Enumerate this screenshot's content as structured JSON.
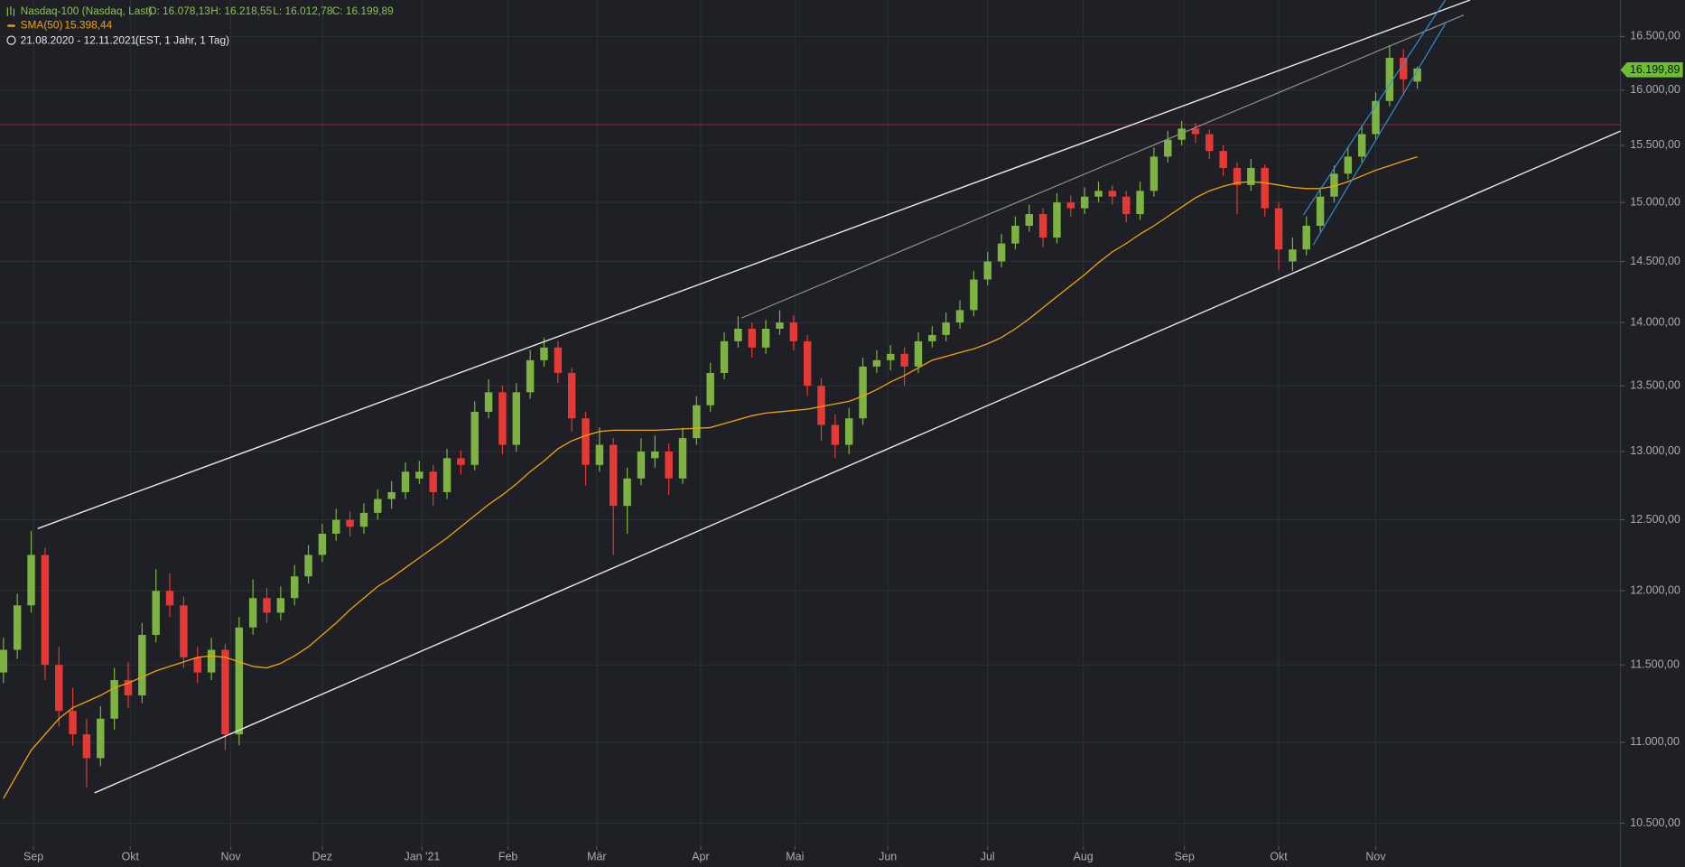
{
  "chart_data": {
    "type": "candlestick",
    "title": "Nasdaq-100 (Nasdaq, Last)",
    "ohlc_labels": [
      "O: 16.078,13",
      "H: 16.218,55",
      "L: 16.012,78",
      "C: 16.199,89"
    ],
    "date_range": "21.08.2020 - 12.11.2021",
    "settings_label": "(EST, 1 Jahr, 1 Tag)",
    "last_price_label": "16.199,89",
    "up_color": "#7cb342",
    "down_color": "#e53935",
    "log_y": true,
    "grid": true,
    "ylim": [
      10360,
      16850
    ],
    "yticks": [
      {
        "value": 10500,
        "label": "10.500,00"
      },
      {
        "value": 11000,
        "label": "11.000,00"
      },
      {
        "value": 11500,
        "label": "11.500,00"
      },
      {
        "value": 12000,
        "label": "12.000,00"
      },
      {
        "value": 12500,
        "label": "12.500,00"
      },
      {
        "value": 13000,
        "label": "13.000,00"
      },
      {
        "value": 13500,
        "label": "13.500,00"
      },
      {
        "value": 14000,
        "label": "14.000,00"
      },
      {
        "value": 14500,
        "label": "14.500,00"
      },
      {
        "value": 15000,
        "label": "15.000,00"
      },
      {
        "value": 15500,
        "label": "15.500,00"
      },
      {
        "value": 16000,
        "label": "16.000,00"
      },
      {
        "value": 16500,
        "label": "16.500,00"
      }
    ],
    "xlim": [
      -0.25,
      116.66
    ],
    "xticks": [
      {
        "value": 2.17,
        "label": "Sep"
      },
      {
        "value": 9.15,
        "label": "Okt"
      },
      {
        "value": 16.4,
        "label": "Nov"
      },
      {
        "value": 23.0,
        "label": "Dez"
      },
      {
        "value": 30.2,
        "label": "Jan '21"
      },
      {
        "value": 36.4,
        "label": "Feb"
      },
      {
        "value": 42.8,
        "label": "Mär"
      },
      {
        "value": 50.3,
        "label": "Apr"
      },
      {
        "value": 57.1,
        "label": "Mai"
      },
      {
        "value": 63.8,
        "label": "Jun"
      },
      {
        "value": 71.0,
        "label": "Jul"
      },
      {
        "value": 77.9,
        "label": "Aug"
      },
      {
        "value": 85.2,
        "label": "Sep"
      },
      {
        "value": 92.0,
        "label": "Okt"
      },
      {
        "value": 99.0,
        "label": "Nov"
      }
    ],
    "ohlc": [
      [
        11450,
        11680,
        11380,
        11600
      ],
      [
        11600,
        11980,
        11540,
        11900
      ],
      [
        11900,
        12420,
        11850,
        12250
      ],
      [
        12250,
        12300,
        11400,
        11500
      ],
      [
        11500,
        11620,
        11100,
        11200
      ],
      [
        11200,
        11350,
        10980,
        11050
      ],
      [
        11050,
        11150,
        10720,
        10900
      ],
      [
        10900,
        11230,
        10850,
        11150
      ],
      [
        11150,
        11480,
        11080,
        11400
      ],
      [
        11400,
        11520,
        11220,
        11300
      ],
      [
        11300,
        11780,
        11250,
        11700
      ],
      [
        11700,
        12150,
        11650,
        12000
      ],
      [
        12000,
        12120,
        11820,
        11900
      ],
      [
        11900,
        11960,
        11480,
        11550
      ],
      [
        11550,
        11620,
        11380,
        11450
      ],
      [
        11450,
        11680,
        11400,
        11600
      ],
      [
        11600,
        11640,
        10950,
        11050
      ],
      [
        11050,
        11820,
        10980,
        11750
      ],
      [
        11750,
        12080,
        11700,
        11950
      ],
      [
        11950,
        12020,
        11780,
        11850
      ],
      [
        11850,
        12030,
        11800,
        11950
      ],
      [
        11950,
        12180,
        11900,
        12100
      ],
      [
        12100,
        12320,
        12050,
        12250
      ],
      [
        12250,
        12470,
        12200,
        12400
      ],
      [
        12400,
        12580,
        12350,
        12500
      ],
      [
        12500,
        12560,
        12380,
        12450
      ],
      [
        12450,
        12620,
        12400,
        12550
      ],
      [
        12550,
        12720,
        12500,
        12650
      ],
      [
        12650,
        12780,
        12580,
        12700
      ],
      [
        12700,
        12920,
        12650,
        12850
      ],
      [
        12800,
        12930,
        12760,
        12850
      ],
      [
        12850,
        12900,
        12600,
        12700
      ],
      [
        12700,
        13020,
        12650,
        12950
      ],
      [
        12950,
        13010,
        12830,
        12900
      ],
      [
        12900,
        13380,
        12860,
        13300
      ],
      [
        13300,
        13550,
        13250,
        13450
      ],
      [
        13450,
        13500,
        12980,
        13050
      ],
      [
        13050,
        13520,
        13000,
        13450
      ],
      [
        13450,
        13780,
        13400,
        13700
      ],
      [
        13700,
        13880,
        13650,
        13800
      ],
      [
        13800,
        13850,
        13520,
        13600
      ],
      [
        13600,
        13640,
        13150,
        13250
      ],
      [
        13250,
        13300,
        12750,
        12900
      ],
      [
        12900,
        13180,
        12850,
        13050
      ],
      [
        13050,
        13100,
        12250,
        12600
      ],
      [
        12600,
        12880,
        12400,
        12800
      ],
      [
        12800,
        13100,
        12750,
        13000
      ],
      [
        12950,
        13120,
        12880,
        13000
      ],
      [
        13000,
        13060,
        12680,
        12800
      ],
      [
        12800,
        13180,
        12760,
        13100
      ],
      [
        13100,
        13420,
        13050,
        13350
      ],
      [
        13350,
        13680,
        13300,
        13600
      ],
      [
        13600,
        13920,
        13550,
        13850
      ],
      [
        13850,
        14050,
        13800,
        13950
      ],
      [
        13950,
        14000,
        13720,
        13800
      ],
      [
        13800,
        14020,
        13750,
        13950
      ],
      [
        13950,
        14100,
        13900,
        14000
      ],
      [
        14000,
        14060,
        13780,
        13850
      ],
      [
        13850,
        13900,
        13420,
        13500
      ],
      [
        13500,
        13560,
        13080,
        13200
      ],
      [
        13200,
        13280,
        12950,
        13050
      ],
      [
        13050,
        13330,
        12980,
        13250
      ],
      [
        13250,
        13720,
        13200,
        13650
      ],
      [
        13650,
        13780,
        13600,
        13700
      ],
      [
        13700,
        13820,
        13620,
        13750
      ],
      [
        13750,
        13800,
        13500,
        13650
      ],
      [
        13650,
        13920,
        13600,
        13850
      ],
      [
        13850,
        13970,
        13800,
        13900
      ],
      [
        13900,
        14080,
        13850,
        14000
      ],
      [
        14000,
        14180,
        13950,
        14100
      ],
      [
        14100,
        14420,
        14050,
        14350
      ],
      [
        14350,
        14580,
        14300,
        14500
      ],
      [
        14500,
        14730,
        14450,
        14650
      ],
      [
        14650,
        14880,
        14600,
        14800
      ],
      [
        14800,
        14980,
        14750,
        14900
      ],
      [
        14900,
        14950,
        14620,
        14700
      ],
      [
        14700,
        15080,
        14650,
        15000
      ],
      [
        15000,
        15060,
        14880,
        14950
      ],
      [
        14950,
        15130,
        14900,
        15050
      ],
      [
        15050,
        15180,
        15000,
        15100
      ],
      [
        15100,
        15150,
        14980,
        15050
      ],
      [
        15050,
        15100,
        14830,
        14900
      ],
      [
        14900,
        15180,
        14850,
        15100
      ],
      [
        15100,
        15480,
        15050,
        15400
      ],
      [
        15400,
        15630,
        15350,
        15550
      ],
      [
        15550,
        15720,
        15500,
        15650
      ],
      [
        15650,
        15700,
        15520,
        15600
      ],
      [
        15600,
        15640,
        15380,
        15450
      ],
      [
        15450,
        15500,
        15230,
        15300
      ],
      [
        15300,
        15350,
        14900,
        15150
      ],
      [
        15150,
        15380,
        15100,
        15300
      ],
      [
        15300,
        15330,
        14880,
        14950
      ],
      [
        14950,
        15000,
        14430,
        14600
      ],
      [
        14500,
        14700,
        14420,
        14600
      ],
      [
        14600,
        14880,
        14550,
        14800
      ],
      [
        14800,
        15130,
        14750,
        15050
      ],
      [
        15050,
        15320,
        15000,
        15250
      ],
      [
        15250,
        15480,
        15200,
        15400
      ],
      [
        15400,
        15680,
        15350,
        15600
      ],
      [
        15600,
        15980,
        15550,
        15900
      ],
      [
        15900,
        16420,
        15850,
        16300
      ],
      [
        16300,
        16380,
        15950,
        16100
      ],
      [
        16078.13,
        16218.55,
        16012.78,
        16199.89
      ]
    ],
    "overlays": [
      {
        "name": "SMA(50)",
        "color": "#f0a30a",
        "value_label": "15.398,44",
        "values": [
          10650,
          10800,
          10950,
          11050,
          11150,
          11220,
          11260,
          11300,
          11350,
          11380,
          11420,
          11460,
          11490,
          11520,
          11550,
          11560,
          11550,
          11520,
          11490,
          11480,
          11510,
          11560,
          11620,
          11700,
          11780,
          11870,
          11950,
          12030,
          12090,
          12160,
          12230,
          12300,
          12370,
          12450,
          12530,
          12610,
          12680,
          12760,
          12850,
          12930,
          13020,
          13080,
          13120,
          13150,
          13160,
          13160,
          13160,
          13160,
          13165,
          13170,
          13175,
          13180,
          13210,
          13240,
          13270,
          13290,
          13300,
          13310,
          13320,
          13340,
          13360,
          13380,
          13420,
          13470,
          13530,
          13580,
          13640,
          13700,
          13730,
          13760,
          13790,
          13830,
          13880,
          13950,
          14030,
          14120,
          14210,
          14300,
          14390,
          14490,
          14580,
          14650,
          14730,
          14800,
          14880,
          14960,
          15040,
          15100,
          15140,
          15170,
          15180,
          15170,
          15150,
          15130,
          15120,
          15120,
          15140,
          15180,
          15230,
          15280,
          15320,
          15360,
          15398.44
        ]
      }
    ]
  }
}
